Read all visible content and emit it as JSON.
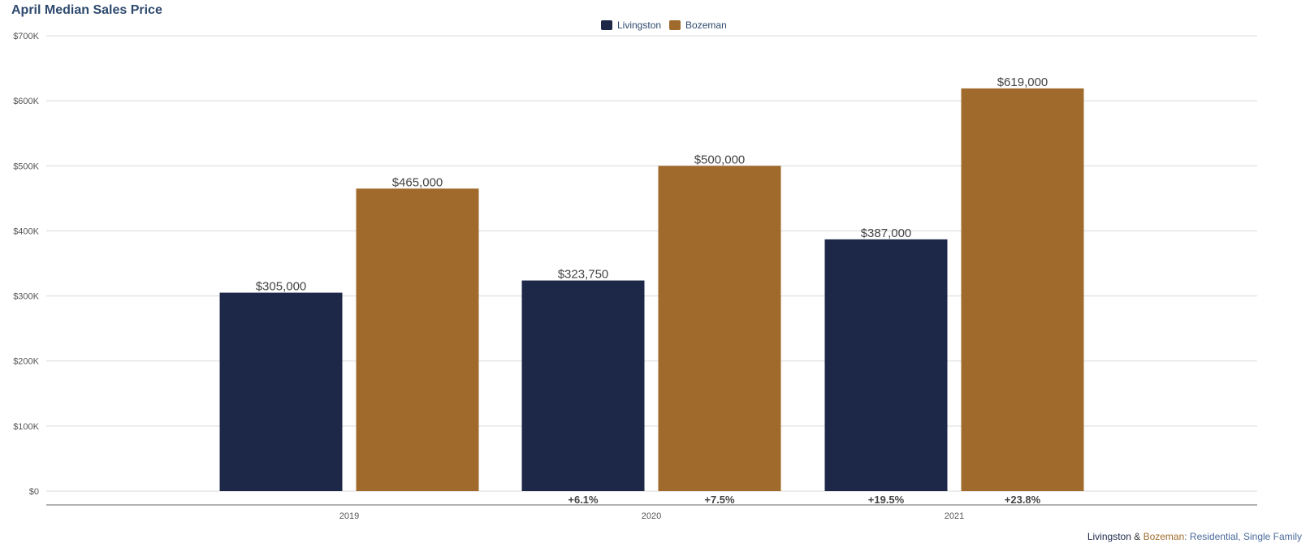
{
  "colors": {
    "Livingston": "#1d2849",
    "Bozeman": "#a06a2c",
    "grid": "#d9d9d9",
    "axis": "#555555"
  },
  "footer": {
    "part1": "Livingston",
    "sep": " & ",
    "part2": "Bozeman",
    "part3": ": Residential, Single Family"
  },
  "chart_data": {
    "type": "bar",
    "title": "April Median Sales Price",
    "xlabel": "",
    "ylabel": "",
    "ylim": [
      0,
      700000
    ],
    "yticks": [
      0,
      100000,
      200000,
      300000,
      400000,
      500000,
      600000,
      700000
    ],
    "ytick_labels": [
      "$0",
      "$100K",
      "$200K",
      "$300K",
      "$400K",
      "$500K",
      "$600K",
      "$700K"
    ],
    "categories": [
      "2019",
      "2020",
      "2021"
    ],
    "series": [
      {
        "name": "Livingston",
        "values": [
          305000,
          323750,
          387000
        ],
        "labels": [
          "$305,000",
          "$323,750",
          "$387,000"
        ],
        "change_labels": [
          "",
          "+6.1%",
          "+19.5%"
        ]
      },
      {
        "name": "Bozeman",
        "values": [
          465000,
          500000,
          619000
        ],
        "labels": [
          "$465,000",
          "$500,000",
          "$619,000"
        ],
        "change_labels": [
          "",
          "+7.5%",
          "+23.8%"
        ]
      }
    ],
    "legend": "top-center",
    "grid": true
  }
}
